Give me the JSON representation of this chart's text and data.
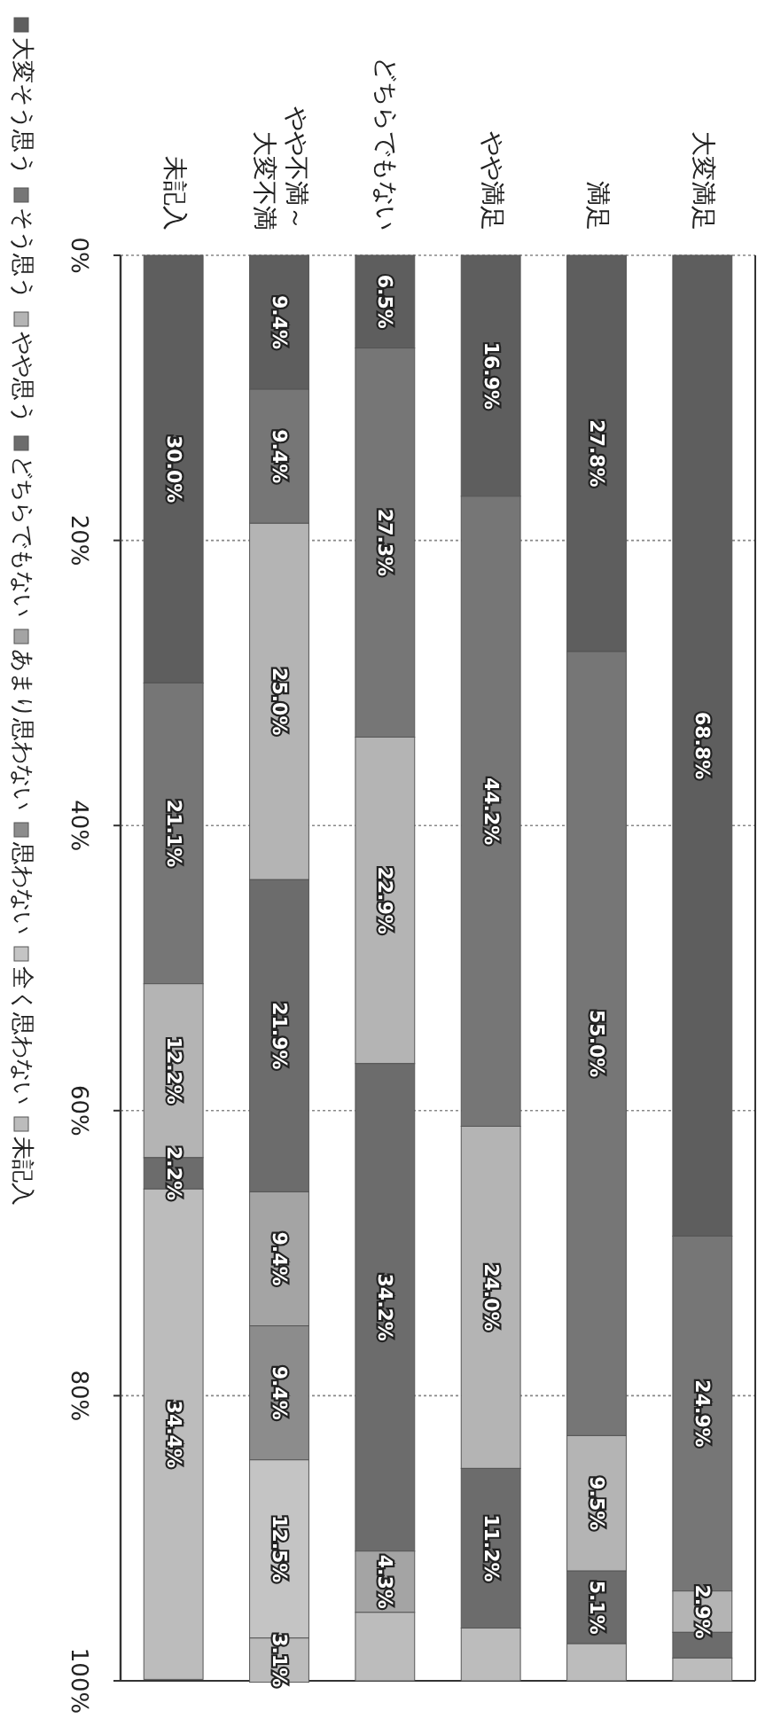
{
  "chart_data": {
    "type": "bar",
    "stacked": true,
    "categories": [
      "未記入",
      "やや不満～大変不満",
      "どちらでもない",
      "やや満足",
      "満足",
      "大変満足"
    ],
    "ylim": [
      100,
      0
    ],
    "yticks": [
      {
        "value": 0,
        "label": "0%"
      },
      {
        "value": 20,
        "label": "20%"
      },
      {
        "value": 40,
        "label": "40%"
      },
      {
        "value": 60,
        "label": "60%"
      },
      {
        "value": 80,
        "label": "80%"
      },
      {
        "value": 100,
        "label": "100%"
      }
    ],
    "grid": "y",
    "legend": "left",
    "series": [
      {
        "name": "大変そう思う",
        "color": "#5e5e5e",
        "values": [
          30.0,
          9.4,
          6.5,
          16.9,
          27.8,
          68.8
        ],
        "value_labels": [
          "30.0%",
          "9.4%",
          "6.5%",
          "16.9%",
          "27.8%",
          "68.8%"
        ]
      },
      {
        "name": "そう思う",
        "color": "#767676",
        "values": [
          21.1,
          9.4,
          27.3,
          44.2,
          55.0,
          24.9
        ],
        "value_labels": [
          "21.1%",
          "9.4%",
          "27.3%",
          "44.2%",
          "55.0%",
          "24.9%"
        ]
      },
      {
        "name": "やや思う",
        "color": "#b4b4b4",
        "values": [
          12.2,
          25.0,
          22.9,
          24.0,
          9.5,
          2.9
        ],
        "value_labels": [
          "12.2%",
          "25.0%",
          "22.9%",
          "24.0%",
          "9.5%",
          "2.9%"
        ]
      },
      {
        "name": "どちらでもない",
        "color": "#6c6c6c",
        "values": [
          2.2,
          21.9,
          34.2,
          11.2,
          5.1,
          1.8
        ],
        "value_labels": [
          "2.2%",
          "21.9%",
          "34.2%",
          "11.2%",
          "5.1%",
          null
        ]
      },
      {
        "name": "あまり思わない",
        "color": "#a4a4a4",
        "values": [
          0,
          9.4,
          4.3,
          0,
          0,
          0
        ],
        "value_labels": [
          null,
          "9.4%",
          "4.3%",
          null,
          null,
          null
        ]
      },
      {
        "name": "思わない",
        "color": "#8c8c8c",
        "values": [
          0,
          9.4,
          0,
          0,
          0,
          0
        ],
        "value_labels": [
          null,
          "9.4%",
          null,
          null,
          null,
          null
        ]
      },
      {
        "name": "全く思わない",
        "color": "#c4c4c4",
        "values": [
          0,
          12.5,
          0,
          0,
          0,
          0
        ],
        "value_labels": [
          null,
          "12.5%",
          null,
          null,
          null,
          null
        ]
      },
      {
        "name": "未記入",
        "color": "#bcbcbc",
        "values": [
          34.4,
          3.1,
          4.8,
          3.7,
          2.6,
          1.6
        ],
        "value_labels": [
          "34.4%",
          "3.1%",
          null,
          null,
          null,
          null
        ]
      }
    ]
  }
}
